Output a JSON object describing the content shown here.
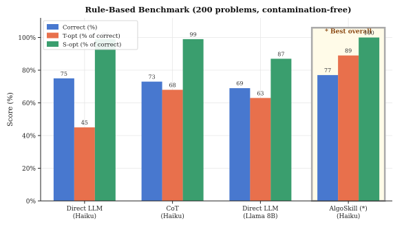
{
  "chart_data": {
    "type": "bar",
    "title": "Rule-Based Benchmark (200 problems, contamination-free)",
    "xlabel": "",
    "ylabel": "Score (%)",
    "ylim": [
      0,
      112
    ],
    "yticks": [
      0,
      20,
      40,
      60,
      80,
      100
    ],
    "ytick_labels": [
      "0%",
      "20%",
      "40%",
      "60%",
      "80%",
      "100%"
    ],
    "grid": true,
    "legend_position": "top-left",
    "categories": [
      [
        "Direct LLM",
        "(Haiku)"
      ],
      [
        "CoT",
        "(Haiku)"
      ],
      [
        "Direct LLM",
        "(Llama 8B)"
      ],
      [
        "AlgoSkill (*)",
        "(Haiku)"
      ]
    ],
    "series": [
      {
        "name": "Correct (%)",
        "color": "#4878cf",
        "values": [
          75,
          73,
          69,
          77
        ],
        "labels": [
          "75",
          "73",
          "69",
          "77"
        ]
      },
      {
        "name": "T-opt (% of correct)",
        "color": "#e8704c",
        "values": [
          45,
          68,
          63,
          89
        ],
        "labels": [
          "45",
          "68",
          "63",
          "89"
        ]
      },
      {
        "name": "S-opt (% of correct)",
        "color": "#3a9e6e",
        "values": [
          99,
          99,
          87,
          100
        ],
        "labels": [
          "99",
          "99",
          "87",
          "100"
        ]
      }
    ],
    "highlight": {
      "category_index": 3,
      "label": "* Best overall",
      "label_color": "#8b4a14",
      "fill_color": "#fffbe8",
      "border_color": "#aaaaaa"
    }
  }
}
